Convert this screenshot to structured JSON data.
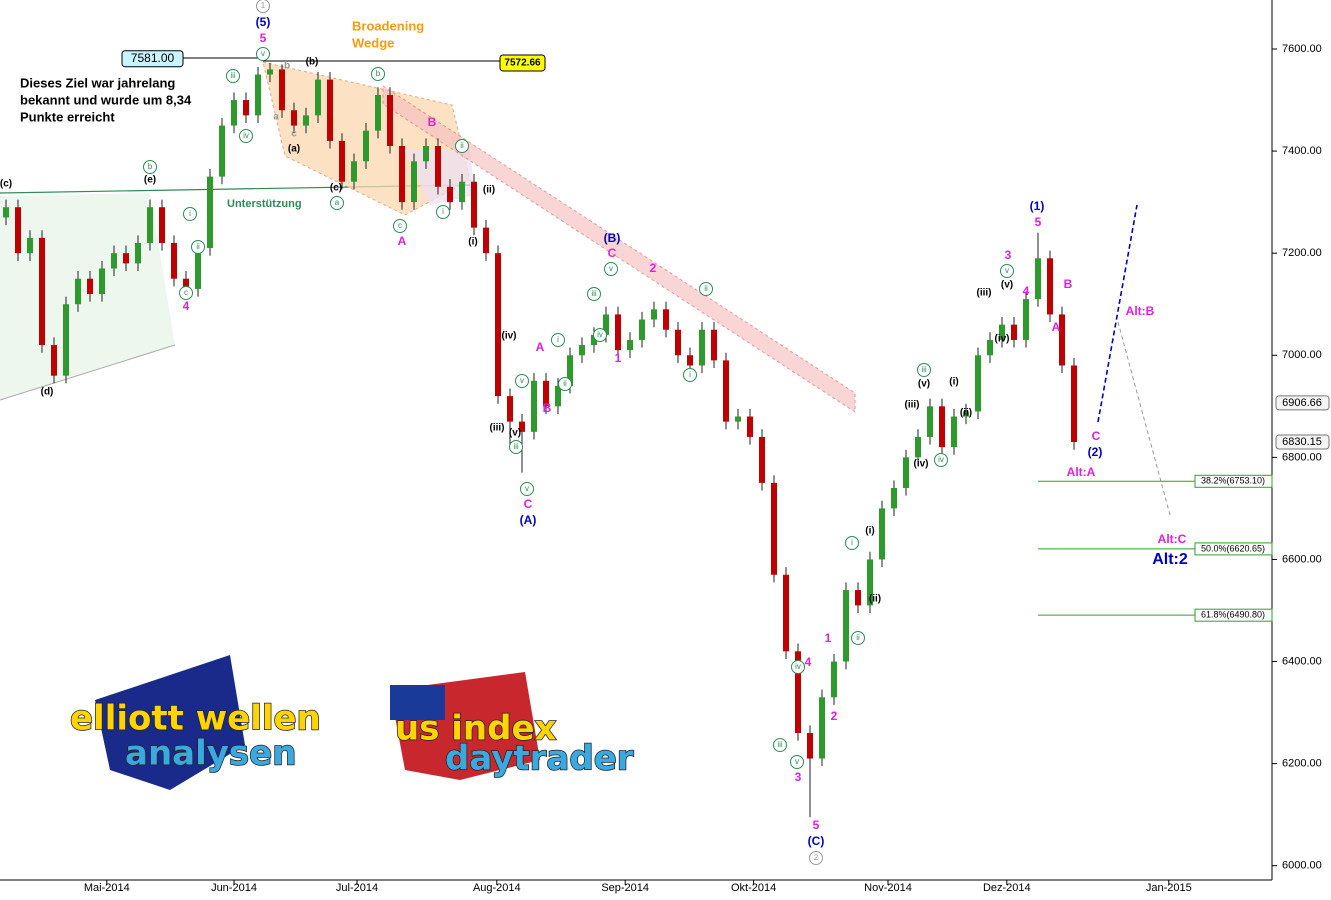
{
  "chart_data": {
    "type": "candlestick",
    "up_color": "#2e9a2e",
    "down_color": "#c00000",
    "open": [
      7270,
      7290,
      7200,
      7230,
      7020,
      6960,
      7100,
      7150,
      7120,
      7170,
      7200,
      7180,
      7220,
      7290,
      7220,
      7150,
      7130,
      7210,
      7350,
      7450,
      7500,
      7470,
      7550,
      7560,
      7480,
      7450,
      7470,
      7540,
      7420,
      7340,
      7380,
      7440,
      7510,
      7410,
      7300,
      7380,
      7410,
      7330,
      7300,
      7340,
      7250,
      7200,
      6920,
      6870,
      6850,
      6950,
      6900,
      6940,
      7000,
      7020,
      7040,
      7080,
      7010,
      7030,
      7070,
      7090,
      7050,
      7000,
      6980,
      7050,
      6990,
      6870,
      6880,
      6840,
      6750,
      6570,
      6420,
      6260,
      6210,
      6330,
      6400,
      6540,
      6510,
      6600,
      6700,
      6740,
      6800,
      6840,
      6900,
      6820,
      6880,
      6890,
      7000,
      7030,
      7060,
      7030,
      7110,
      7190,
      7080,
      6980
    ],
    "high": [
      7305,
      7305,
      7245,
      7245,
      7035,
      7115,
      7165,
      7165,
      7185,
      7215,
      7215,
      7235,
      7305,
      7305,
      7235,
      7165,
      7225,
      7365,
      7465,
      7515,
      7515,
      7565,
      7572.66,
      7570,
      7495,
      7485,
      7555,
      7555,
      7435,
      7395,
      7455,
      7525,
      7525,
      7425,
      7395,
      7425,
      7425,
      7345,
      7355,
      7355,
      7265,
      7215,
      6935,
      6885,
      6965,
      6965,
      6955,
      7015,
      7035,
      7055,
      7095,
      7095,
      7045,
      7085,
      7105,
      7105,
      7065,
      7015,
      7065,
      7065,
      7005,
      6895,
      6895,
      6855,
      6765,
      6585,
      6435,
      6275,
      6345,
      6415,
      6555,
      6555,
      6615,
      6715,
      6755,
      6815,
      6855,
      6915,
      6915,
      6895,
      6905,
      7015,
      7045,
      7075,
      7075,
      7125,
      7240,
      7205,
      7095,
      6995
    ],
    "low": [
      7255,
      7185,
      7185,
      7005,
      6945,
      6945,
      7085,
      7105,
      7105,
      7155,
      7165,
      7165,
      7205,
      7205,
      7135,
      7115,
      7115,
      7195,
      7335,
      7435,
      7455,
      7455,
      7535,
      7465,
      7435,
      7435,
      7455,
      7405,
      7325,
      7325,
      7365,
      7425,
      7395,
      7285,
      7285,
      7365,
      7315,
      7285,
      7285,
      7235,
      7185,
      6905,
      6820,
      6770,
      6835,
      6885,
      6885,
      6925,
      6985,
      7005,
      7025,
      6995,
      6995,
      7015,
      7055,
      7035,
      6985,
      6965,
      6965,
      6975,
      6855,
      6855,
      6825,
      6735,
      6555,
      6405,
      6245,
      6095,
      6195,
      6315,
      6385,
      6495,
      6495,
      6585,
      6685,
      6725,
      6785,
      6825,
      6805,
      6805,
      6865,
      6875,
      6985,
      7015,
      7015,
      7015,
      7095,
      7065,
      6965,
      6815
    ],
    "close": [
      7290,
      7200,
      7230,
      7020,
      6960,
      7100,
      7150,
      7120,
      7170,
      7200,
      7180,
      7220,
      7290,
      7220,
      7150,
      7130,
      7210,
      7350,
      7450,
      7500,
      7470,
      7550,
      7560,
      7480,
      7450,
      7470,
      7540,
      7420,
      7340,
      7380,
      7440,
      7510,
      7410,
      7300,
      7380,
      7410,
      7330,
      7300,
      7340,
      7250,
      7200,
      6920,
      6870,
      6850,
      6950,
      6900,
      6940,
      7000,
      7020,
      7040,
      7080,
      7010,
      7030,
      7070,
      7090,
      7050,
      7000,
      6980,
      7050,
      6990,
      6870,
      6880,
      6840,
      6750,
      6570,
      6420,
      6260,
      6210,
      6330,
      6400,
      6540,
      6510,
      6600,
      6700,
      6740,
      6800,
      6840,
      6900,
      6820,
      6880,
      6890,
      7000,
      7030,
      7060,
      7030,
      7110,
      7190,
      7080,
      6980,
      6830.15
    ],
    "xlim": [
      -0.5,
      105.5
    ],
    "ylim": [
      5972,
      7696
    ],
    "xticks": [
      {
        "value": 8.4,
        "label": "Mai-2014"
      },
      {
        "value": 19,
        "label": "Jun-2014"
      },
      {
        "value": 29.25,
        "label": "Jul-2014"
      },
      {
        "value": 40.9,
        "label": "Aug-2014"
      },
      {
        "value": 51.6,
        "label": "Sep-2014"
      },
      {
        "value": 62.3,
        "label": "Okt-2014"
      },
      {
        "value": 73.5,
        "label": "Nov-2014"
      },
      {
        "value": 83.4,
        "label": "Dez-2014"
      },
      {
        "value": 96.9,
        "label": "Jan-2015"
      }
    ],
    "yticks": [
      {
        "value": 6000,
        "label": "6000.00"
      },
      {
        "value": 6200,
        "label": "6200.00"
      },
      {
        "value": 6400,
        "label": "6400.00"
      },
      {
        "value": 6600,
        "label": "6600.00"
      },
      {
        "value": 6800,
        "label": "6800.00"
      },
      {
        "value": 7000,
        "label": "7000.00"
      },
      {
        "value": 7200,
        "label": "7200.00"
      },
      {
        "value": 7400,
        "label": "7400.00"
      },
      {
        "value": 7600,
        "label": "7600.00"
      }
    ],
    "hlines": [
      {
        "value": 6753.1,
        "label": "38.2%(6753.10)"
      },
      {
        "value": 6620.65,
        "label": "50.0%(6620.65)"
      },
      {
        "value": 6490.8,
        "label": "61.8%(6490.80)"
      }
    ],
    "hline_color": "#2ca02c",
    "price_tags": [
      {
        "value": 6906.66,
        "label": "6906.66"
      },
      {
        "value": 6830.15,
        "label": "6830.15"
      }
    ],
    "target_tags": [
      {
        "value": 7581,
        "label": "7581.00",
        "color": "#c8f4ff"
      },
      {
        "value": 7572.66,
        "label": "7572.66",
        "color": "#ffff00"
      }
    ],
    "annotations": [
      {
        "text": "Dieses Ziel war jahrelang",
        "color": "#000000",
        "style": "note"
      },
      {
        "text": "bekannt und wurde um 8,34",
        "color": "#000000",
        "style": "note"
      },
      {
        "text": "Punkte erreicht",
        "color": "#000000",
        "style": "note"
      },
      {
        "text": "Broadening",
        "color": "#f39c12",
        "style": "note"
      },
      {
        "text": "Wedge",
        "color": "#f39c12",
        "style": "note"
      },
      {
        "text": "Unterstützung",
        "color": "#2e8b57",
        "style": "note"
      },
      {
        "text": "(5)",
        "color": "#0000c0",
        "style": "bold"
      },
      {
        "text": "5",
        "color": "#e020e0",
        "style": "bold"
      },
      {
        "text": "1",
        "color": "#999999",
        "style": "circle"
      },
      {
        "text": "(B)",
        "color": "#0000c0",
        "style": "bold"
      },
      {
        "text": "C",
        "color": "#e020e0",
        "style": "bold"
      },
      {
        "text": "(A)",
        "color": "#0000c0",
        "style": "bold"
      },
      {
        "text": "C",
        "color": "#e020e0",
        "style": "bold"
      },
      {
        "text": "(C)",
        "color": "#0000c0",
        "style": "bold"
      },
      {
        "text": "5",
        "color": "#e020e0",
        "style": "bold"
      },
      {
        "text": "2",
        "color": "#999999",
        "style": "circle"
      },
      {
        "text": "(1)",
        "color": "#0000c0",
        "style": "bold"
      },
      {
        "text": "5",
        "color": "#e020e0",
        "style": "bold"
      },
      {
        "text": "(2)",
        "color": "#0000c0",
        "style": "bold"
      },
      {
        "text": "C",
        "color": "#e020e0",
        "style": "bold"
      },
      {
        "text": "Alt:A",
        "color": "#e020e0",
        "style": "bold"
      },
      {
        "text": "Alt:B",
        "color": "#e020e0",
        "style": "bold"
      },
      {
        "text": "Alt:C",
        "color": "#e020e0",
        "style": "bold"
      },
      {
        "text": "Alt:2",
        "color": "#0000c0",
        "style": "big"
      },
      {
        "text": "4",
        "color": "#e020e0",
        "style": "bold"
      },
      {
        "text": "A",
        "color": "#e020e0",
        "style": "bold"
      },
      {
        "text": "B",
        "color": "#e020e0",
        "style": "bold"
      },
      {
        "text": "A",
        "color": "#e020e0",
        "style": "bold"
      },
      {
        "text": "B",
        "color": "#e020e0",
        "style": "bold"
      },
      {
        "text": "1",
        "color": "#e020e0",
        "style": "bold"
      },
      {
        "text": "2",
        "color": "#e020e0",
        "style": "bold"
      },
      {
        "text": "1",
        "color": "#e020e0",
        "style": "bold"
      },
      {
        "text": "2",
        "color": "#e020e0",
        "style": "bold"
      },
      {
        "text": "3",
        "color": "#e020e0",
        "style": "bold"
      },
      {
        "text": "4",
        "color": "#e020e0",
        "style": "bold"
      },
      {
        "text": "3",
        "color": "#e020e0",
        "style": "bold"
      },
      {
        "text": "4",
        "color": "#e020e0",
        "style": "bold"
      },
      {
        "text": "B",
        "color": "#e020e0",
        "style": "bold"
      },
      {
        "text": "A",
        "color": "#e020e0",
        "style": "bold"
      },
      {
        "text": "(c)",
        "color": "#000000",
        "style": "small"
      },
      {
        "text": "(e)",
        "color": "#000000",
        "style": "small"
      },
      {
        "text": "(d)",
        "color": "#000000",
        "style": "small"
      },
      {
        "text": "(b)",
        "color": "#000000",
        "style": "small"
      },
      {
        "text": "(a)",
        "color": "#000000",
        "style": "small"
      },
      {
        "text": "(c)",
        "color": "#000000",
        "style": "small"
      },
      {
        "text": "(i)",
        "color": "#000000",
        "style": "small"
      },
      {
        "text": "(ii)",
        "color": "#000000",
        "style": "small"
      },
      {
        "text": "(iii)",
        "color": "#000000",
        "style": "small"
      },
      {
        "text": "(iv)",
        "color": "#000000",
        "style": "small"
      },
      {
        "text": "(v)",
        "color": "#000000",
        "style": "small"
      },
      {
        "text": "(i)",
        "color": "#000000",
        "style": "small"
      },
      {
        "text": "(ii)",
        "color": "#000000",
        "style": "small"
      },
      {
        "text": "(iii)",
        "color": "#000000",
        "style": "small"
      },
      {
        "text": "(iv)",
        "color": "#000000",
        "style": "small"
      },
      {
        "text": "(v)",
        "color": "#000000",
        "style": "small"
      },
      {
        "text": "(i)",
        "color": "#000000",
        "style": "small"
      },
      {
        "text": "(ii)",
        "color": "#000000",
        "style": "small"
      },
      {
        "text": "(iii)",
        "color": "#000000",
        "style": "small"
      },
      {
        "text": "(iv)",
        "color": "#000000",
        "style": "small"
      },
      {
        "text": "(v)",
        "color": "#000000",
        "style": "small"
      },
      {
        "text": "iii",
        "color": "#2e8b57",
        "style": "circle"
      },
      {
        "text": "iv",
        "color": "#2e8b57",
        "style": "circle"
      },
      {
        "text": "v",
        "color": "#2e8b57",
        "style": "circle"
      },
      {
        "text": "b",
        "color": "#2e8b57",
        "style": "circle"
      },
      {
        "text": "a",
        "color": "#2e8b57",
        "style": "circle"
      },
      {
        "text": "c",
        "color": "#2e8b57",
        "style": "circle"
      },
      {
        "text": "i",
        "color": "#2e8b57",
        "style": "circle"
      },
      {
        "text": "ii",
        "color": "#2e8b57",
        "style": "circle"
      },
      {
        "text": "c",
        "color": "#2e8b57",
        "style": "circle"
      },
      {
        "text": "b",
        "color": "#2e8b57",
        "style": "circle"
      },
      {
        "text": "i",
        "color": "#2e8b57",
        "style": "circle"
      },
      {
        "text": "ii",
        "color": "#2e8b57",
        "style": "circle"
      },
      {
        "text": "v",
        "color": "#2e8b57",
        "style": "circle"
      },
      {
        "text": "iii",
        "color": "#2e8b57",
        "style": "circle"
      },
      {
        "text": "v",
        "color": "#2e8b57",
        "style": "circle"
      },
      {
        "text": "i",
        "color": "#2e8b57",
        "style": "circle"
      },
      {
        "text": "ii",
        "color": "#2e8b57",
        "style": "circle"
      },
      {
        "text": "iii",
        "color": "#2e8b57",
        "style": "circle"
      },
      {
        "text": "iv",
        "color": "#2e8b57",
        "style": "circle"
      },
      {
        "text": "v",
        "color": "#2e8b57",
        "style": "circle"
      },
      {
        "text": "i",
        "color": "#2e8b57",
        "style": "circle"
      },
      {
        "text": "ii",
        "color": "#2e8b57",
        "style": "circle"
      },
      {
        "text": "iii",
        "color": "#2e8b57",
        "style": "circle"
      },
      {
        "text": "iv",
        "color": "#2e8b57",
        "style": "circle"
      },
      {
        "text": "v",
        "color": "#2e8b57",
        "style": "circle"
      },
      {
        "text": "i",
        "color": "#2e8b57",
        "style": "circle"
      },
      {
        "text": "ii",
        "color": "#2e8b57",
        "style": "circle"
      },
      {
        "text": "iii",
        "color": "#2e8b57",
        "style": "circle"
      },
      {
        "text": "iv",
        "color": "#2e8b57",
        "style": "circle"
      },
      {
        "text": "v",
        "color": "#2e8b57",
        "style": "circle"
      },
      {
        "text": "a",
        "color": "#999999",
        "style": "small"
      },
      {
        "text": "b",
        "color": "#999999",
        "style": "small"
      },
      {
        "text": "c",
        "color": "#999999",
        "style": "small"
      }
    ],
    "logos": [
      "elliott wellen",
      "analysen",
      "us index",
      "daytrader"
    ]
  }
}
